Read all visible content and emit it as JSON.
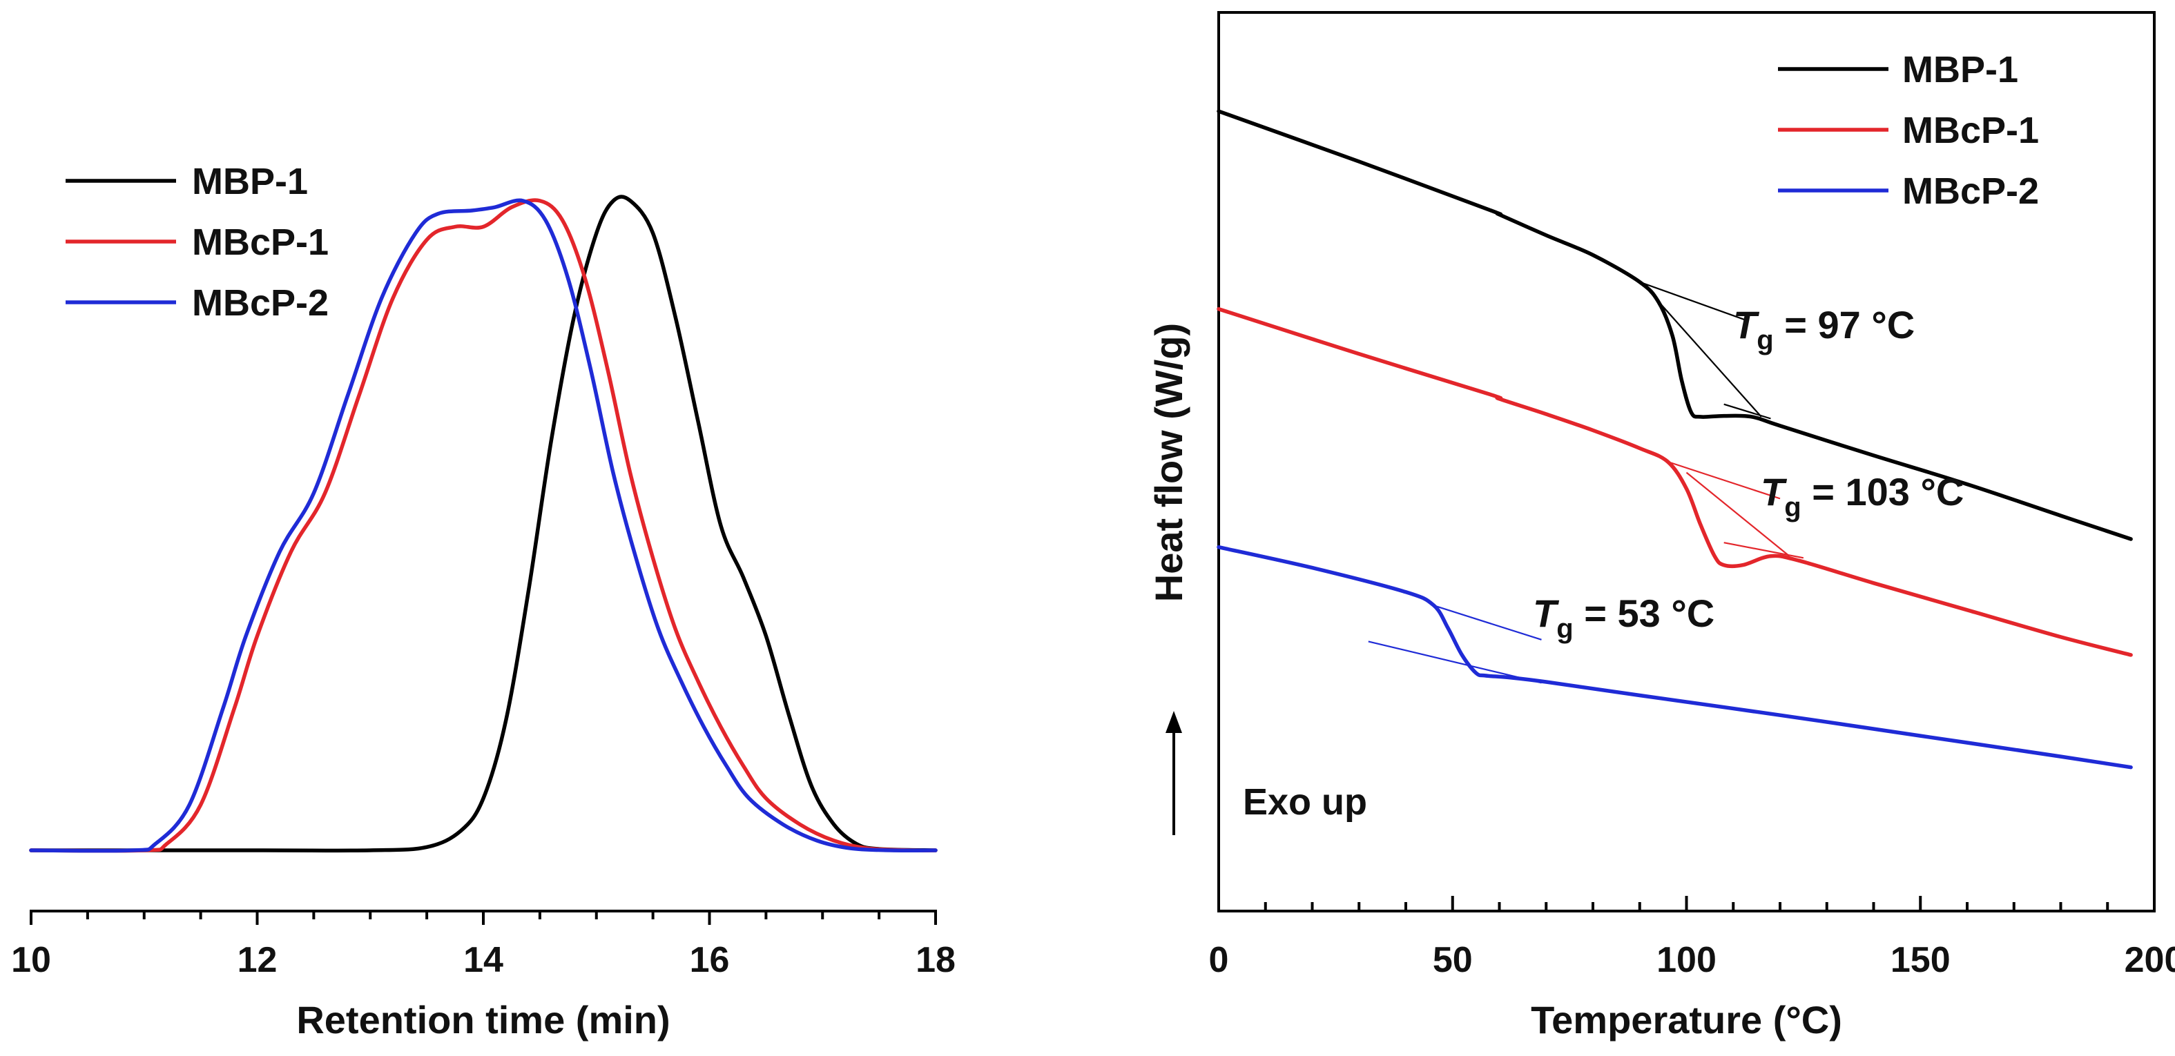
{
  "chart_data": [
    {
      "type": "line",
      "title": "",
      "xlabel": "Retention time (min)",
      "ylabel": "",
      "xlim": [
        10,
        18
      ],
      "ylim": [
        0,
        1.05
      ],
      "xticks": [
        10,
        12,
        14,
        16,
        18
      ],
      "xtick_labels": [
        "10",
        "12",
        "14",
        "16",
        "18"
      ],
      "legend": "top-left",
      "series": [
        {
          "name": "MBP-1",
          "color": "#000000",
          "points": [
            [
              10.0,
              0
            ],
            [
              12.0,
              0
            ],
            [
              13.0,
              0
            ],
            [
              13.5,
              0.005
            ],
            [
              13.8,
              0.03
            ],
            [
              14.0,
              0.08
            ],
            [
              14.2,
              0.2
            ],
            [
              14.4,
              0.4
            ],
            [
              14.6,
              0.63
            ],
            [
              14.8,
              0.82
            ],
            [
              15.0,
              0.95
            ],
            [
              15.15,
              1.0
            ],
            [
              15.3,
              1.0
            ],
            [
              15.5,
              0.95
            ],
            [
              15.7,
              0.82
            ],
            [
              15.9,
              0.66
            ],
            [
              16.1,
              0.5
            ],
            [
              16.3,
              0.42
            ],
            [
              16.5,
              0.33
            ],
            [
              16.7,
              0.21
            ],
            [
              16.9,
              0.1
            ],
            [
              17.1,
              0.04
            ],
            [
              17.3,
              0.01
            ],
            [
              17.5,
              0.002
            ],
            [
              18.0,
              0
            ]
          ]
        },
        {
          "name": "MBcP-1",
          "color": "#e3262b",
          "points": [
            [
              10.0,
              0
            ],
            [
              11.0,
              0
            ],
            [
              11.2,
              0.01
            ],
            [
              11.5,
              0.07
            ],
            [
              11.8,
              0.22
            ],
            [
              12.0,
              0.33
            ],
            [
              12.3,
              0.46
            ],
            [
              12.6,
              0.55
            ],
            [
              12.9,
              0.7
            ],
            [
              13.2,
              0.85
            ],
            [
              13.5,
              0.94
            ],
            [
              13.75,
              0.96
            ],
            [
              14.0,
              0.96
            ],
            [
              14.25,
              0.99
            ],
            [
              14.5,
              1.0
            ],
            [
              14.7,
              0.97
            ],
            [
              14.9,
              0.88
            ],
            [
              15.1,
              0.74
            ],
            [
              15.3,
              0.58
            ],
            [
              15.5,
              0.45
            ],
            [
              15.7,
              0.34
            ],
            [
              15.9,
              0.26
            ],
            [
              16.1,
              0.19
            ],
            [
              16.3,
              0.13
            ],
            [
              16.5,
              0.08
            ],
            [
              16.8,
              0.04
            ],
            [
              17.1,
              0.015
            ],
            [
              17.4,
              0.003
            ],
            [
              17.8,
              0
            ],
            [
              18.0,
              0
            ]
          ]
        },
        {
          "name": "MBcP-2",
          "color": "#1f2bd6",
          "points": [
            [
              10.0,
              0
            ],
            [
              10.9,
              0
            ],
            [
              11.1,
              0.01
            ],
            [
              11.4,
              0.07
            ],
            [
              11.7,
              0.22
            ],
            [
              11.9,
              0.33
            ],
            [
              12.2,
              0.46
            ],
            [
              12.5,
              0.55
            ],
            [
              12.8,
              0.7
            ],
            [
              13.1,
              0.85
            ],
            [
              13.4,
              0.95
            ],
            [
              13.6,
              0.98
            ],
            [
              13.9,
              0.985
            ],
            [
              14.1,
              0.99
            ],
            [
              14.35,
              1.0
            ],
            [
              14.55,
              0.97
            ],
            [
              14.75,
              0.88
            ],
            [
              14.95,
              0.74
            ],
            [
              15.15,
              0.58
            ],
            [
              15.35,
              0.45
            ],
            [
              15.55,
              0.34
            ],
            [
              15.75,
              0.26
            ],
            [
              15.95,
              0.19
            ],
            [
              16.15,
              0.13
            ],
            [
              16.35,
              0.08
            ],
            [
              16.65,
              0.04
            ],
            [
              16.95,
              0.015
            ],
            [
              17.25,
              0.003
            ],
            [
              17.6,
              0
            ],
            [
              18.0,
              0
            ]
          ]
        }
      ]
    },
    {
      "type": "line",
      "title": "",
      "xlabel": "Temperature (°C)",
      "ylabel": "Heat flow (W/g)",
      "xlim": [
        0,
        200
      ],
      "ylim": [
        0,
        1
      ],
      "xticks": [
        0,
        50,
        100,
        150,
        200
      ],
      "xtick_labels": [
        "0",
        "50",
        "100",
        "150",
        "200"
      ],
      "legend": "top-right",
      "annotation": "Exo up",
      "series": [
        {
          "name": "MBP-1",
          "color": "#000000",
          "tg_symbol": "T",
          "tg_subscript": "g",
          "tg_label": " = 97 °C",
          "points": [
            [
              0,
              0.89
            ],
            [
              30,
              0.834
            ],
            [
              58,
              0.78
            ],
            [
              60,
              0.775
            ],
            [
              70,
              0.752
            ],
            [
              80,
              0.73
            ],
            [
              90,
              0.7
            ],
            [
              94,
              0.678
            ],
            [
              97,
              0.64
            ],
            [
              99,
              0.59
            ],
            [
              101,
              0.555
            ],
            [
              103,
              0.55
            ],
            [
              108,
              0.551
            ],
            [
              114,
              0.55
            ],
            [
              120,
              0.54
            ],
            [
              140,
              0.507
            ],
            [
              160,
              0.475
            ],
            [
              180,
              0.44
            ],
            [
              195,
              0.414
            ]
          ],
          "tangents": [
            [
              [
                90,
                0.7
              ],
              [
                113,
                0.657
              ]
            ],
            [
              [
                92,
                0.69
              ],
              [
                116,
                0.55
              ]
            ],
            [
              [
                108,
                0.564
              ],
              [
                118,
                0.548
              ]
            ]
          ]
        },
        {
          "name": "MBcP-1",
          "color": "#e3262b",
          "tg_symbol": "T",
          "tg_subscript": "g",
          "tg_label": " = 103 °C",
          "points": [
            [
              0,
              0.67
            ],
            [
              30,
              0.62
            ],
            [
              58,
              0.575
            ],
            [
              60,
              0.57
            ],
            [
              70,
              0.553
            ],
            [
              80,
              0.535
            ],
            [
              90,
              0.515
            ],
            [
              96,
              0.5
            ],
            [
              100,
              0.47
            ],
            [
              103,
              0.43
            ],
            [
              106,
              0.395
            ],
            [
              108,
              0.385
            ],
            [
              112,
              0.385
            ],
            [
              118,
              0.395
            ],
            [
              124,
              0.39
            ],
            [
              140,
              0.365
            ],
            [
              160,
              0.335
            ],
            [
              180,
              0.305
            ],
            [
              195,
              0.285
            ]
          ],
          "tangents": [
            [
              [
                96,
                0.5
              ],
              [
                120,
                0.459
              ]
            ],
            [
              [
                100,
                0.488
              ],
              [
                122,
                0.395
              ]
            ],
            [
              [
                108,
                0.41
              ],
              [
                125,
                0.393
              ]
            ]
          ]
        },
        {
          "name": "MBcP-2",
          "color": "#1f2bd6",
          "tg_symbol": "T",
          "tg_subscript": "g",
          "tg_label": " = 53 °C",
          "points": [
            [
              0,
              0.405
            ],
            [
              20,
              0.382
            ],
            [
              40,
              0.355
            ],
            [
              46,
              0.34
            ],
            [
              49,
              0.315
            ],
            [
              52,
              0.285
            ],
            [
              55,
              0.265
            ],
            [
              57,
              0.262
            ],
            [
              62,
              0.26
            ],
            [
              70,
              0.255
            ],
            [
              90,
              0.24
            ],
            [
              120,
              0.218
            ],
            [
              150,
              0.195
            ],
            [
              180,
              0.172
            ],
            [
              195,
              0.16
            ]
          ],
          "tangents": [
            [
              [
                46,
                0.34
              ],
              [
                69,
                0.302
              ]
            ],
            [
              [
                32,
                0.3
              ],
              [
                69,
                0.254
              ]
            ]
          ]
        }
      ]
    }
  ]
}
